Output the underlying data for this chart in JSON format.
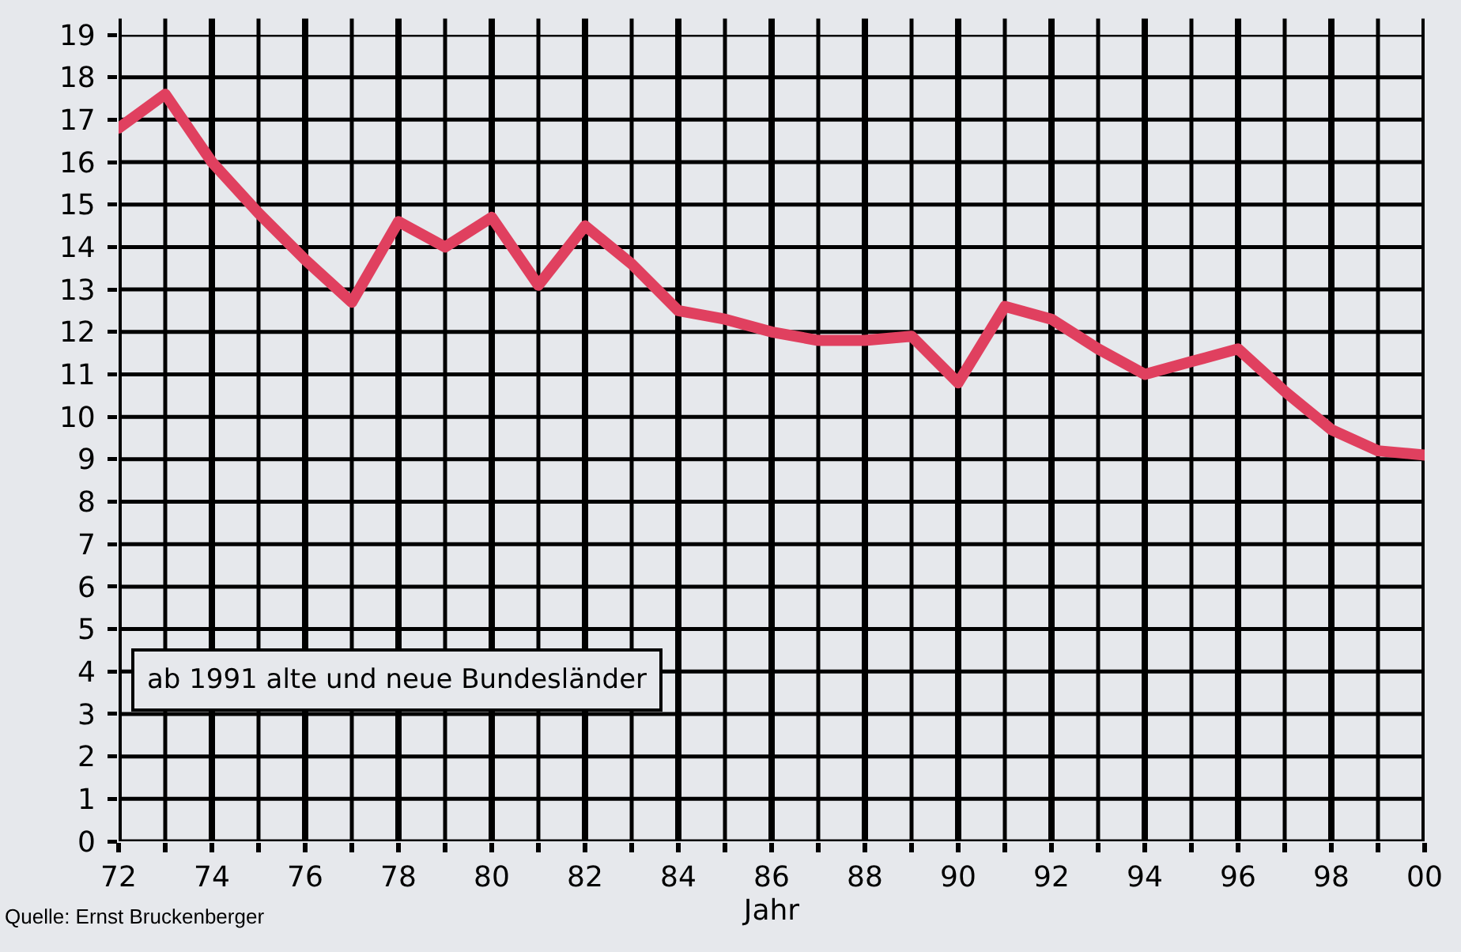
{
  "chart_data": {
    "type": "line",
    "xlabel": "Jahr",
    "x": [
      1972,
      1973,
      1974,
      1975,
      1976,
      1977,
      1978,
      1979,
      1980,
      1981,
      1982,
      1983,
      1984,
      1985,
      1986,
      1987,
      1988,
      1989,
      1990,
      1991,
      1992,
      1993,
      1994,
      1995,
      1996,
      1997,
      1998,
      1999,
      2000
    ],
    "series": [
      {
        "color": "#e0405f",
        "values": [
          16.8,
          17.6,
          16.0,
          14.8,
          13.7,
          12.7,
          14.6,
          14.0,
          14.7,
          13.1,
          14.5,
          13.6,
          12.5,
          12.3,
          12.0,
          11.8,
          11.8,
          11.9,
          10.8,
          12.6,
          12.3,
          11.6,
          11.0,
          11.3,
          11.6,
          10.6,
          9.7,
          9.2,
          9.1
        ]
      }
    ],
    "xlim": [
      1972,
      2000
    ],
    "xticks": [
      {
        "value": 1972,
        "label": "72"
      },
      {
        "value": 1973,
        "label": null
      },
      {
        "value": 1974,
        "label": "74"
      },
      {
        "value": 1975,
        "label": null
      },
      {
        "value": 1976,
        "label": "76"
      },
      {
        "value": 1977,
        "label": null
      },
      {
        "value": 1978,
        "label": "78"
      },
      {
        "value": 1979,
        "label": null
      },
      {
        "value": 1980,
        "label": "80"
      },
      {
        "value": 1981,
        "label": null
      },
      {
        "value": 1982,
        "label": "82"
      },
      {
        "value": 1983,
        "label": null
      },
      {
        "value": 1984,
        "label": "84"
      },
      {
        "value": 1985,
        "label": null
      },
      {
        "value": 1986,
        "label": "86"
      },
      {
        "value": 1987,
        "label": null
      },
      {
        "value": 1988,
        "label": "88"
      },
      {
        "value": 1989,
        "label": null
      },
      {
        "value": 1990,
        "label": "90"
      },
      {
        "value": 1991,
        "label": null
      },
      {
        "value": 1992,
        "label": "92"
      },
      {
        "value": 1993,
        "label": null
      },
      {
        "value": 1994,
        "label": "94"
      },
      {
        "value": 1995,
        "label": null
      },
      {
        "value": 1996,
        "label": "96"
      },
      {
        "value": 1997,
        "label": null
      },
      {
        "value": 1998,
        "label": "98"
      },
      {
        "value": 1999,
        "label": null
      },
      {
        "value": 2000,
        "label": "00"
      }
    ],
    "ylim": [
      0,
      19
    ],
    "yticks": [
      0,
      1,
      2,
      3,
      4,
      5,
      6,
      7,
      8,
      9,
      10,
      11,
      12,
      13,
      14,
      15,
      16,
      17,
      18,
      19
    ],
    "grid": true,
    "marker": "none",
    "line_style": "solid",
    "annotations": [
      "ab 1991 alte und neue Bundesländer",
      "Quelle: Ernst Bruckenberger"
    ]
  }
}
